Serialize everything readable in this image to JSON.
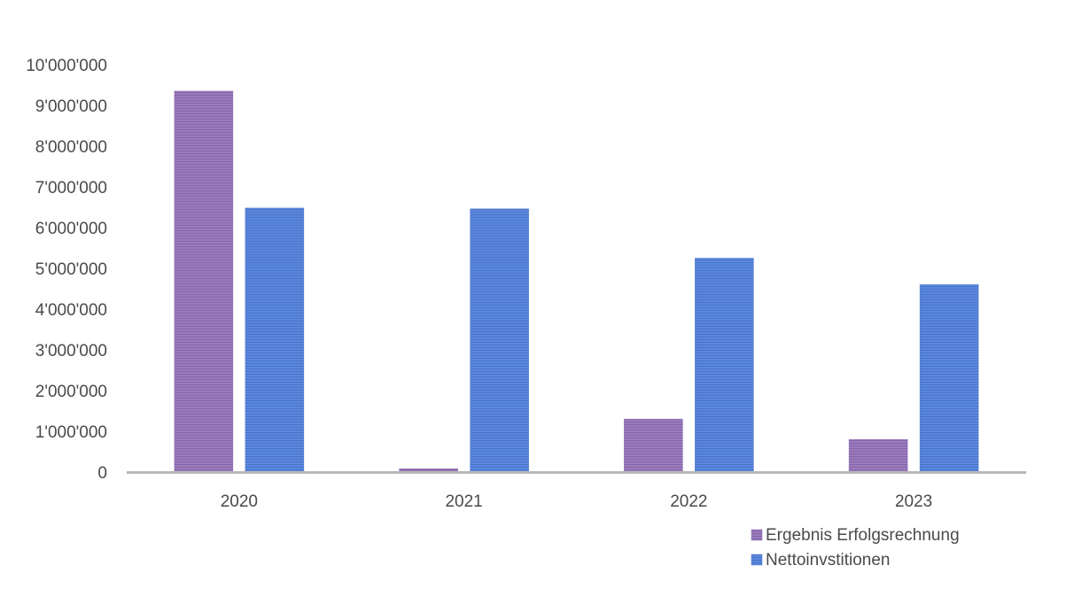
{
  "chart_data": {
    "type": "bar",
    "categories": [
      "2020",
      "2021",
      "2022",
      "2023"
    ],
    "series": [
      {
        "name": "Ergebnis Erfolgsrechnung",
        "values": [
          9350000,
          80000,
          1300000,
          800000
        ]
      },
      {
        "name": "Nettoinvstitionen",
        "values": [
          6480000,
          6460000,
          5250000,
          4600000
        ]
      }
    ],
    "yticks": [
      "0",
      "1'000'000",
      "2'000'000",
      "3'000'000",
      "4'000'000",
      "5'000'000",
      "6'000'000",
      "7'000'000",
      "8'000'000",
      "9'000'000",
      "10'000'000"
    ],
    "ylim": [
      0,
      10000000
    ],
    "grid": false,
    "legend_position": "bottom-right",
    "colors": {
      "Ergebnis Erfolgsrechnung": "#9b7bbd",
      "Nettoinvstitionen": "#5a86dc",
      "axis": "#b8b8b8"
    }
  }
}
